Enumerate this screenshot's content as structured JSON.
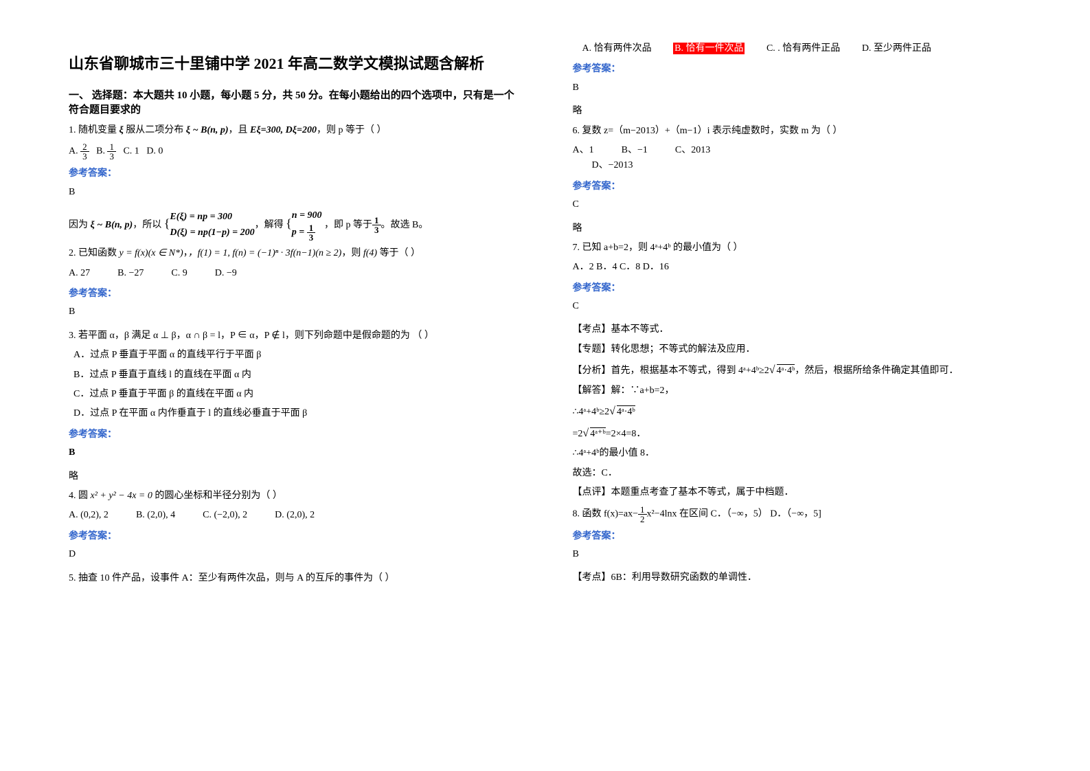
{
  "title": "山东省聊城市三十里铺中学 2021 年高二数学文模拟试题含解析",
  "section1_header": "一、 选择题：本大题共 10 小题，每小题 5 分，共 50 分。在每小题给出的四个选项中，只有是一个符合题目要求的",
  "q1": {
    "body": "服从二项分布",
    "cond": "，且",
    "e": "Eξ=300, Dξ=200",
    "tail": "，则 p 等于（ ）",
    "optA": "A. ",
    "optB": "B. ",
    "optC": "C. 1",
    "optD": "D. 0",
    "ans": "B",
    "expl_a": "因为",
    "expl_b": "，所以",
    "expl_c": "，解得",
    "expl_d": "，即 p 等于",
    "expl_e": "。故选 B。"
  },
  "q2": {
    "body": "2. 已知函数",
    "fn": "y = f(x)(x ∈ N*)",
    "cond": "，f(1) = 1, f(n) = (−1)ⁿ · 3f(n−1)(n ≥ 2)",
    "tail": "，则",
    "f4": "f(4)",
    "eq": "等于（        ）",
    "A": "A.  27",
    "B": "B.  −27",
    "C": "C.  9",
    "D": "D.  −9",
    "ans": "B"
  },
  "q3": {
    "body": "3. 若平面 α，β 满足 α ⊥ β，α ∩ β = l，P ∈ α，P ∉ l，则下列命题中是假命题的为    （   ）",
    "A": "A．过点 P 垂直于平面 α 的直线平行于平面 β",
    "B": "B．过点 P 垂直于直线 l 的直线在平面 α 内",
    "C": "C．过点 P 垂直于平面 β 的直线在平面 α 内",
    "D": "D．过点 P 在平面 α 内作垂直于 l 的直线必垂直于平面 β",
    "ans": "B",
    "skip": "略"
  },
  "q4": {
    "body": "4. 圆",
    "eq": "x² + y² − 4x = 0",
    "tail": "的圆心坐标和半径分别为（        ）",
    "A": "A.  (0,2), 2",
    "B": "B.  (2,0), 4",
    "C": "C.  (−2,0), 2",
    "D": "D.  (2,0), 2",
    "ans": "D"
  },
  "q5": {
    "body": "5. 抽查 10 件产品，设事件 A：至少有两件次品，则与 A 的互斥的事件为（  ）",
    "A": "A. 恰有两件次品",
    "B_hl": "B. 恰有一件次品",
    "C": "C. . 恰有两件正品",
    "D": "D. 至少两件正品",
    "ans": "B",
    "skip": "略"
  },
  "q6": {
    "body": "6. 复数 z=（m−2013）+（m−1）i 表示纯虚数时，实数 m 为（      ）",
    "A": "A、1",
    "B": "B、−1",
    "C": "C、2013",
    "D": "D、−2013",
    "ans": "C",
    "skip": "略"
  },
  "q7": {
    "body": "7. 已知 a+b=2，则 4ᵃ+4ᵇ 的最小值为（        ）",
    "A": "A．2   B．4   C．8   D．16",
    "ans": "C",
    "kp": "【考点】基本不等式．",
    "zt": "【专题】转化思想；不等式的解法及应用．",
    "fx_a": "【分析】首先，根据基本不等式，得到 4ᵃ+4ᵇ≥2",
    "fx_b": "，然后，根据所给条件确定其值即可．",
    "jd0": "【解答】解：∵a+b=2，",
    "jd1a": "∴4ᵃ+4ᵇ≥2",
    "jd2a": "=2",
    "jd2b": "=2×4=8．",
    "jd3": "∴4ᵃ+4ᵇ的最小值 8．",
    "jd4": "故选：C．",
    "dp": "【点评】本题重点考查了基本不等式，属于中档题．"
  },
  "q8": {
    "body_a": "8. 函数",
    "fx": "f(x)=ax−",
    "fx2": "x²−4lnx",
    "tail": "在区间  C．（−∞，5）      D．（−∞，5]",
    "ans": "B",
    "kp": "【考点】6B：利用导数研究函数的单调性．"
  },
  "labels": {
    "answer": "参考答案："
  }
}
